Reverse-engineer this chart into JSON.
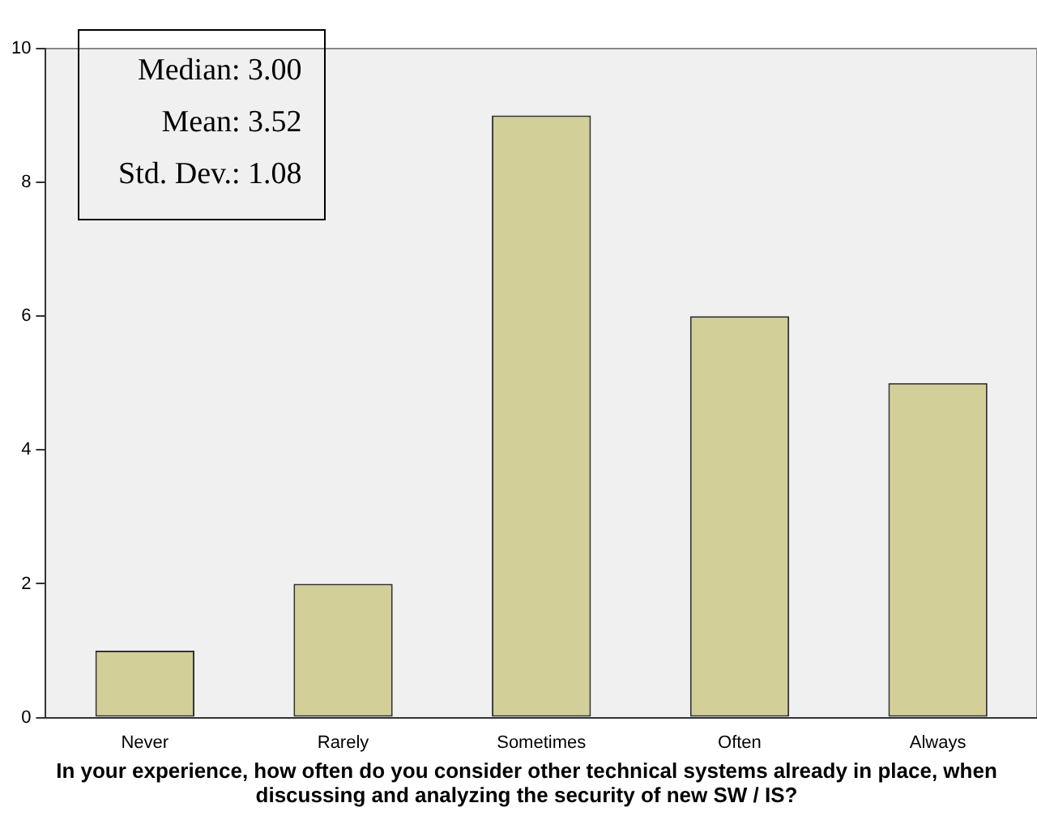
{
  "chart_data": {
    "type": "bar",
    "xlabel": "In your experience, how often do you consider other technical systems  already in place, when discussing and analyzing the security of new SW / IS?",
    "categories": [
      "Never",
      "Rarely",
      "Sometimes",
      "Often",
      "Always"
    ],
    "values": [
      1,
      2,
      9,
      6,
      5
    ],
    "color": "#d3cf98",
    "ylim": [
      0,
      10
    ],
    "yticks": [
      0,
      2,
      4,
      6,
      8,
      10
    ],
    "grid": false,
    "legend": false,
    "annotations": [
      "Median: 3.00",
      "Mean: 3.52",
      "Std. Dev.: 1.08"
    ]
  }
}
